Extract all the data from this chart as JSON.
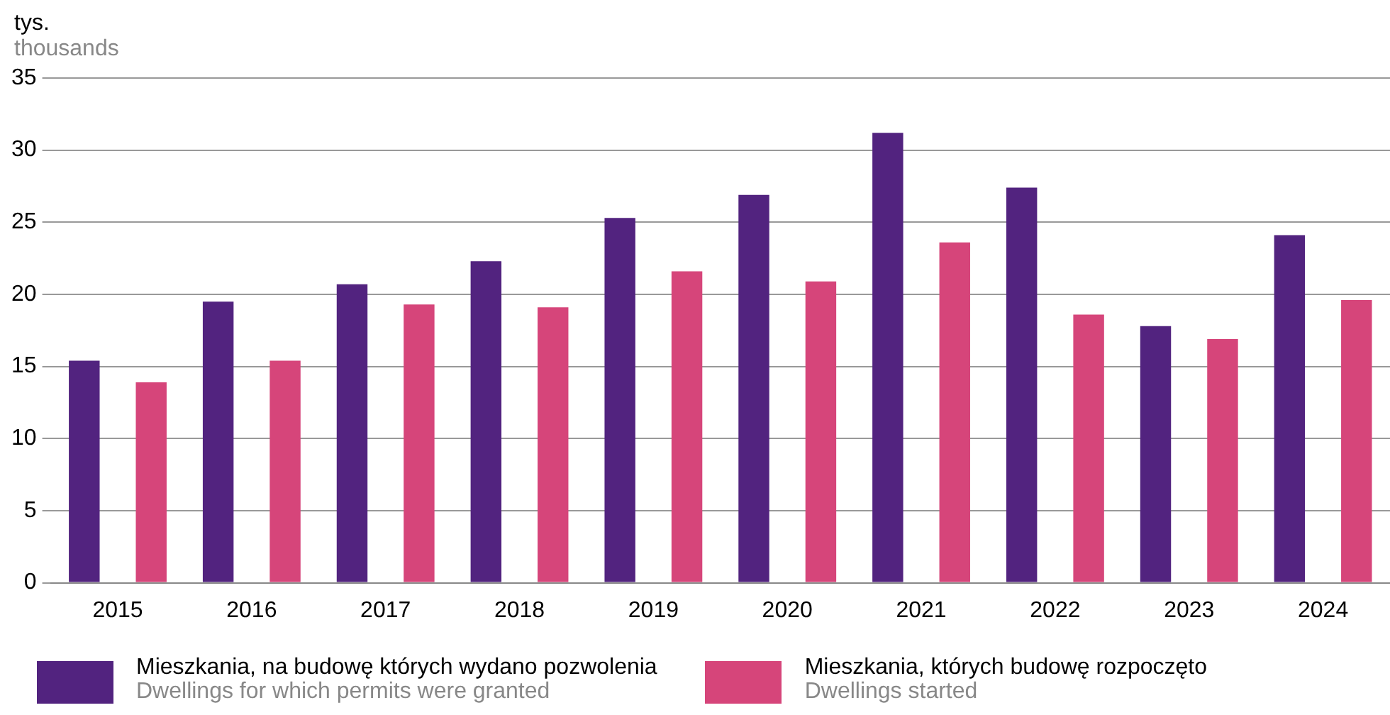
{
  "chart_data": {
    "type": "bar",
    "ylabel": "tys.\nthousands",
    "categories": [
      "2015",
      "2016",
      "2017",
      "2018",
      "2019",
      "2020",
      "2021",
      "2022",
      "2023",
      "2024"
    ],
    "series": [
      {
        "name": "Mieszkania, na budowę których wydano pozwolenia\nDwellings for which permits were granted",
        "color": "#52237f",
        "values": [
          15.4,
          19.5,
          20.7,
          22.3,
          25.3,
          26.9,
          31.2,
          27.4,
          17.8,
          24.1
        ]
      },
      {
        "name": "Mieszkania, których budowę rozpoczęto\nDwellings started",
        "color": "#d6457a",
        "values": [
          13.9,
          15.4,
          19.3,
          19.1,
          21.6,
          20.9,
          23.6,
          18.6,
          16.9,
          19.6
        ]
      }
    ],
    "ylim": [
      0,
      35
    ],
    "yticks": [
      0,
      5,
      10,
      15,
      20,
      25,
      30,
      35
    ],
    "grid": "y",
    "legend": "bottom"
  }
}
